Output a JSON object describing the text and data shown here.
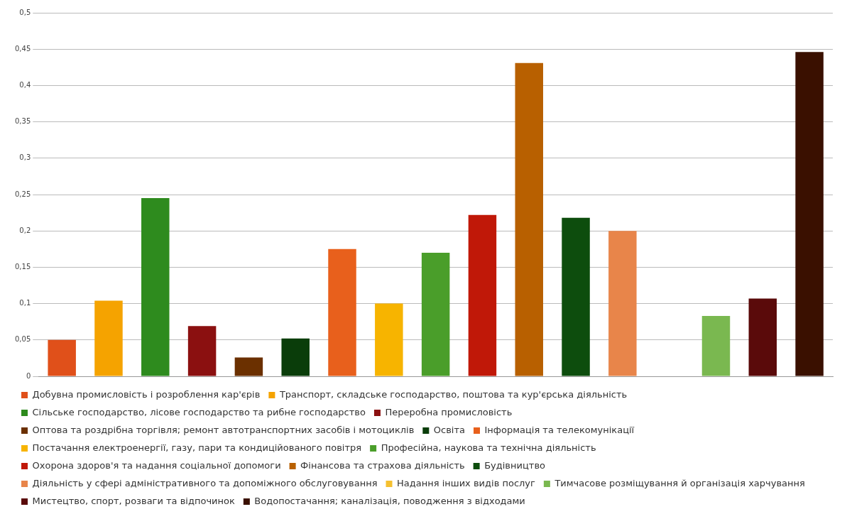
{
  "chart_data": {
    "type": "bar",
    "grid": "y",
    "legend": "bottom",
    "tick_labels": "y",
    "categories": [
      null,
      null,
      null,
      null,
      null,
      null,
      null,
      null,
      null,
      null,
      null,
      null,
      null,
      null,
      null,
      null,
      null
    ],
    "series": [
      {
        "name": "Добувна промисловість і розроблення кар'єрів",
        "color": "#e0501a",
        "values": [
          0.05,
          null,
          null,
          null,
          null,
          null,
          null,
          null,
          null,
          null,
          null,
          null,
          null,
          null,
          null,
          null,
          null
        ]
      },
      {
        "name": "Транспорт, складське господарство, поштова та кур'єрська діяльність",
        "color": "#f5a300",
        "values": [
          null,
          0.104,
          null,
          null,
          null,
          null,
          null,
          null,
          null,
          null,
          null,
          null,
          null,
          null,
          null,
          null,
          null
        ]
      },
      {
        "name": "Сільське господарство, лісове господарство та рибне господарство",
        "color": "#2e8b1e",
        "values": [
          null,
          null,
          0.245,
          null,
          null,
          null,
          null,
          null,
          null,
          null,
          null,
          null,
          null,
          null,
          null,
          null,
          null
        ]
      },
      {
        "name": "Переробна промисловість",
        "color": "#8b1010",
        "values": [
          null,
          null,
          null,
          0.069,
          null,
          null,
          null,
          null,
          null,
          null,
          null,
          null,
          null,
          null,
          null,
          null,
          null
        ]
      },
      {
        "name": "Оптова та роздрібна торгівля; ремонт автотранспортних засобів і мотоциклів",
        "color": "#6b3000",
        "values": [
          null,
          null,
          null,
          null,
          0.026,
          null,
          null,
          null,
          null,
          null,
          null,
          null,
          null,
          null,
          null,
          null,
          null
        ]
      },
      {
        "name": "Освіта",
        "color": "#0a3d0a",
        "values": [
          null,
          null,
          null,
          null,
          null,
          0.052,
          null,
          null,
          null,
          null,
          null,
          null,
          null,
          null,
          null,
          null,
          null
        ]
      },
      {
        "name": "Інформація та телекомунікації",
        "color": "#e8601c",
        "values": [
          null,
          null,
          null,
          null,
          null,
          null,
          0.175,
          null,
          null,
          null,
          null,
          null,
          null,
          null,
          null,
          null,
          null
        ]
      },
      {
        "name": "Постачання електроенергії, газу, пари та кондиційованого повітря",
        "color": "#f7b400",
        "values": [
          null,
          null,
          null,
          null,
          null,
          null,
          null,
          0.1,
          null,
          null,
          null,
          null,
          null,
          null,
          null,
          null,
          null
        ]
      },
      {
        "name": "Професійна, наукова та технічна діяльність",
        "color": "#4a9e2a",
        "values": [
          null,
          null,
          null,
          null,
          null,
          null,
          null,
          null,
          0.17,
          null,
          null,
          null,
          null,
          null,
          null,
          null,
          null
        ]
      },
      {
        "name": "Охорона здоров'я та надання соціальної допомоги",
        "color": "#c01808",
        "values": [
          null,
          null,
          null,
          null,
          null,
          null,
          null,
          null,
          null,
          0.222,
          null,
          null,
          null,
          null,
          null,
          null,
          null
        ]
      },
      {
        "name": "Фінансова та страхова діяльність",
        "color": "#b86000",
        "values": [
          null,
          null,
          null,
          null,
          null,
          null,
          null,
          null,
          null,
          null,
          0.431,
          null,
          null,
          null,
          null,
          null,
          null
        ]
      },
      {
        "name": "Будівництво",
        "color": "#0d4d0d",
        "values": [
          null,
          null,
          null,
          null,
          null,
          null,
          null,
          null,
          null,
          null,
          null,
          0.218,
          null,
          null,
          null,
          null,
          null
        ]
      },
      {
        "name": "Діяльність у сфері адміністративного та допоміжного обслуговування",
        "color": "#e8854a",
        "values": [
          null,
          null,
          null,
          null,
          null,
          null,
          null,
          null,
          null,
          null,
          null,
          null,
          0.2,
          null,
          null,
          null,
          null
        ]
      },
      {
        "name": "Надання інших видів послуг",
        "color": "#f5c030",
        "values": [
          null,
          null,
          null,
          null,
          null,
          null,
          null,
          null,
          null,
          null,
          null,
          null,
          null,
          null,
          null,
          null,
          null
        ]
      },
      {
        "name": "Тимчасове розміщування й організація харчування",
        "color": "#7ab850",
        "values": [
          null,
          null,
          null,
          null,
          null,
          null,
          null,
          null,
          null,
          null,
          null,
          null,
          null,
          null,
          0.083,
          null,
          null
        ]
      },
      {
        "name": "Мистецтво, спорт, розваги та відпочинок",
        "color": "#5a0a0a",
        "values": [
          null,
          null,
          null,
          null,
          null,
          null,
          null,
          null,
          null,
          null,
          null,
          null,
          null,
          null,
          null,
          0.107,
          null
        ]
      },
      {
        "name": "Водопостачання; каналізація, поводження з відходами",
        "color": "#3a1000",
        "values": [
          null,
          null,
          null,
          null,
          null,
          null,
          null,
          null,
          null,
          null,
          null,
          null,
          null,
          null,
          null,
          null,
          0.446
        ]
      }
    ],
    "ylim": [
      0,
      0.5
    ],
    "yticks": [
      0,
      {
        "value": 0.05,
        "label": "0,05"
      },
      {
        "value": 0.1,
        "label": "0,1"
      },
      {
        "value": 0.15,
        "label": "0,15"
      },
      {
        "value": 0.2,
        "label": "0,2"
      },
      {
        "value": 0.25,
        "label": "0,25"
      },
      {
        "value": 0.3,
        "label": "0,3"
      },
      {
        "value": 0.35,
        "label": "0,35"
      },
      {
        "value": 0.4,
        "label": "0,4"
      },
      {
        "value": 0.45,
        "label": "0,45"
      },
      {
        "value": 0.5,
        "label": "0,5"
      }
    ]
  }
}
